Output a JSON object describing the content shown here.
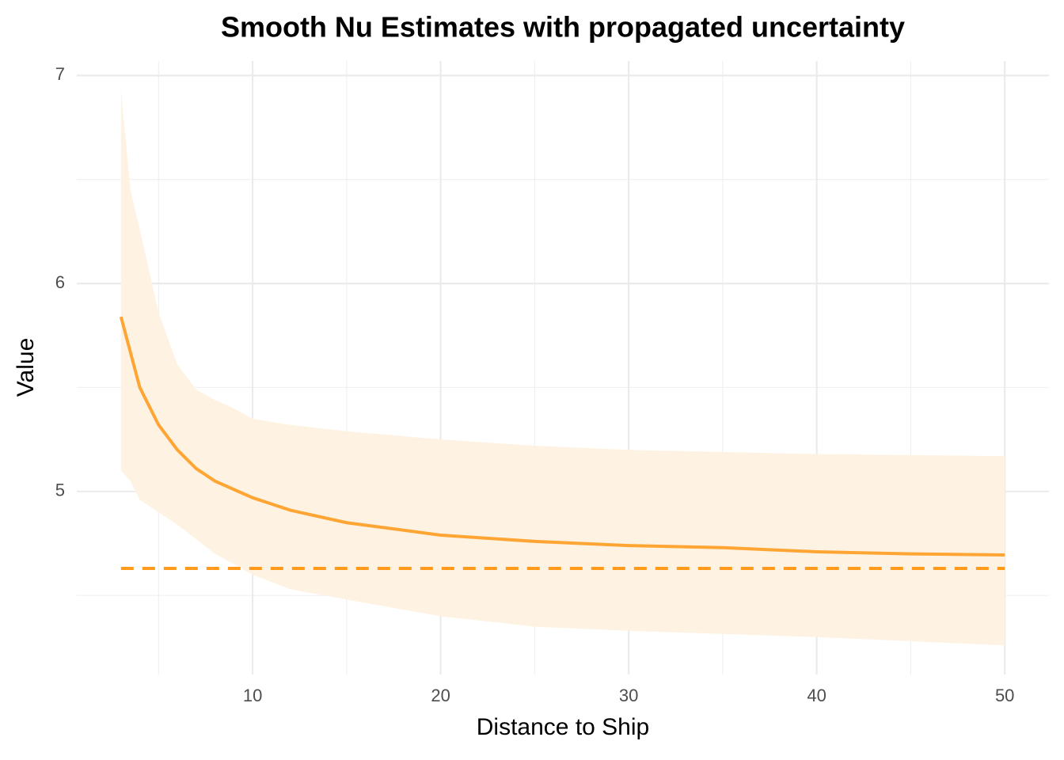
{
  "chart_data": {
    "type": "line-ribbon",
    "title": "Smooth Nu Estimates with propagated uncertainty",
    "x_label": "Distance to Ship",
    "y_label": "Value",
    "xlim": [
      0.65,
      52.35
    ],
    "ylim": [
      4.12,
      7.07
    ],
    "xticks": [
      10,
      20,
      30,
      40,
      50
    ],
    "yticks": [
      5,
      6,
      7
    ],
    "x_minor_grid": [
      5,
      15,
      25,
      35,
      45
    ],
    "y_minor_grid": [
      4.5,
      5.5,
      6.5
    ],
    "grid": true,
    "line": {
      "color": "#ffa533",
      "x": [
        3,
        4,
        5,
        6,
        7,
        8,
        10,
        12,
        15,
        20,
        25,
        30,
        35,
        40,
        45,
        50
      ],
      "values": [
        5.84,
        5.5,
        5.32,
        5.2,
        5.11,
        5.05,
        4.97,
        4.91,
        4.85,
        4.79,
        4.76,
        4.74,
        4.73,
        4.71,
        4.7,
        4.695
      ]
    },
    "band": {
      "color": "#fef3e3",
      "x": [
        3,
        3.5,
        4,
        5,
        6,
        7,
        8,
        9,
        10,
        12,
        15,
        20,
        25,
        30,
        40,
        50
      ],
      "upper": [
        6.93,
        6.45,
        6.26,
        5.86,
        5.61,
        5.49,
        5.44,
        5.4,
        5.35,
        5.32,
        5.29,
        5.25,
        5.22,
        5.2,
        5.18,
        5.17
      ],
      "lower": [
        5.1,
        5.05,
        4.96,
        4.9,
        4.84,
        4.77,
        4.7,
        4.65,
        4.6,
        4.53,
        4.48,
        4.4,
        4.35,
        4.33,
        4.3,
        4.26
      ]
    },
    "hline": {
      "value": 4.63,
      "x": [
        3,
        50
      ],
      "color": "#ff9a1a",
      "dashed": true
    }
  }
}
